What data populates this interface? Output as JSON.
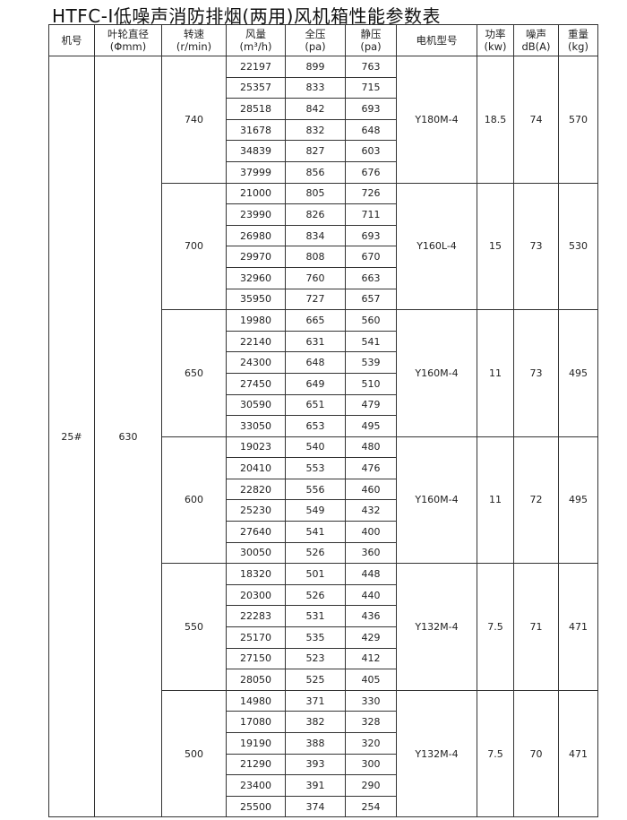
{
  "title": "HTFC-Ⅰ低噪声消防排烟(两用)风机箱性能参数表",
  "headers": [
    {
      "line1": "机号",
      "line2": ""
    },
    {
      "line1": "叶轮直径",
      "line2": "(Φmm)"
    },
    {
      "line1": "转速",
      "line2": "(r/min)"
    },
    {
      "line1": "风量",
      "line2": "(m³/h)"
    },
    {
      "line1": "全压",
      "line2": "(pa)"
    },
    {
      "line1": "静压",
      "line2": "(pa)"
    },
    {
      "line1": "电机型号",
      "line2": ""
    },
    {
      "line1": "功率",
      "line2": "(kw)"
    },
    {
      "line1": "噪声",
      "line2": "dB(A)"
    },
    {
      "line1": "重量",
      "line2": "(kg)"
    }
  ],
  "model": "25#",
  "diameter": "630",
  "groups": [
    {
      "speed": "740",
      "motor": "Y180M-4",
      "power": "18.5",
      "noise": "74",
      "weight": "570",
      "rows": [
        [
          "22197",
          "899",
          "763"
        ],
        [
          "25357",
          "833",
          "715"
        ],
        [
          "28518",
          "842",
          "693"
        ],
        [
          "31678",
          "832",
          "648"
        ],
        [
          "34839",
          "827",
          "603"
        ],
        [
          "37999",
          "856",
          "676"
        ]
      ]
    },
    {
      "speed": "700",
      "motor": "Y160L-4",
      "power": "15",
      "noise": "73",
      "weight": "530",
      "rows": [
        [
          "21000",
          "805",
          "726"
        ],
        [
          "23990",
          "826",
          "711"
        ],
        [
          "26980",
          "834",
          "693"
        ],
        [
          "29970",
          "808",
          "670"
        ],
        [
          "32960",
          "760",
          "663"
        ],
        [
          "35950",
          "727",
          "657"
        ]
      ]
    },
    {
      "speed": "650",
      "motor": "Y160M-4",
      "power": "11",
      "noise": "73",
      "weight": "495",
      "rows": [
        [
          "19980",
          "665",
          "560"
        ],
        [
          "22140",
          "631",
          "541"
        ],
        [
          "24300",
          "648",
          "539"
        ],
        [
          "27450",
          "649",
          "510"
        ],
        [
          "30590",
          "651",
          "479"
        ],
        [
          "33050",
          "653",
          "495"
        ]
      ]
    },
    {
      "speed": "600",
      "motor": "Y160M-4",
      "power": "11",
      "noise": "72",
      "weight": "495",
      "rows": [
        [
          "19023",
          "540",
          "480"
        ],
        [
          "20410",
          "553",
          "476"
        ],
        [
          "22820",
          "556",
          "460"
        ],
        [
          "25230",
          "549",
          "432"
        ],
        [
          "27640",
          "541",
          "400"
        ],
        [
          "30050",
          "526",
          "360"
        ]
      ]
    },
    {
      "speed": "550",
      "motor": "Y132M-4",
      "power": "7.5",
      "noise": "71",
      "weight": "471",
      "rows": [
        [
          "18320",
          "501",
          "448"
        ],
        [
          "20300",
          "526",
          "440"
        ],
        [
          "22283",
          "531",
          "436"
        ],
        [
          "25170",
          "535",
          "429"
        ],
        [
          "27150",
          "523",
          "412"
        ],
        [
          "28050",
          "525",
          "405"
        ]
      ]
    },
    {
      "speed": "500",
      "motor": "Y132M-4",
      "power": "7.5",
      "noise": "70",
      "weight": "471",
      "rows": [
        [
          "14980",
          "371",
          "330"
        ],
        [
          "17080",
          "382",
          "328"
        ],
        [
          "19190",
          "388",
          "320"
        ],
        [
          "21290",
          "393",
          "300"
        ],
        [
          "23400",
          "391",
          "290"
        ],
        [
          "25500",
          "374",
          "254"
        ]
      ]
    }
  ]
}
